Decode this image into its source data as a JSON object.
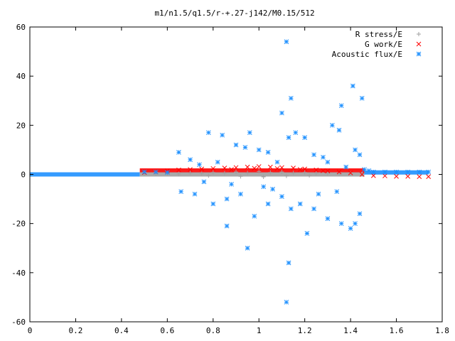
{
  "chart_data": {
    "type": "scatter",
    "title": "m1/n1.5/q1.5/r-+.27-j142/M0.15/512",
    "xlabel": "",
    "ylabel": "",
    "xlim": [
      0,
      1.8
    ],
    "ylim": [
      -60,
      60
    ],
    "grid": false,
    "legend_position": "top-right",
    "x_ticks": [
      "0",
      "0.2",
      "0.4",
      "0.6",
      "0.8",
      "1",
      "1.2",
      "1.4",
      "1.6",
      "1.8"
    ],
    "y_ticks": [
      "60",
      "40",
      "20",
      "0",
      "-20",
      "-40",
      "-60"
    ],
    "series": [
      {
        "name": "R stress/E",
        "marker": "plus",
        "color": "#a0a0a0",
        "points": [
          [
            0.5,
            0.3
          ],
          [
            0.55,
            0.2
          ],
          [
            0.6,
            0.4
          ],
          [
            0.65,
            0.2
          ],
          [
            0.7,
            0.6
          ],
          [
            0.75,
            0.3
          ],
          [
            0.8,
            0.8
          ],
          [
            0.85,
            0.5
          ],
          [
            0.9,
            1.0
          ],
          [
            0.95,
            0.6
          ],
          [
            1.0,
            1.2
          ],
          [
            1.05,
            0.8
          ],
          [
            1.1,
            1.0
          ],
          [
            1.15,
            0.6
          ],
          [
            1.2,
            0.8
          ],
          [
            1.25,
            0.4
          ],
          [
            1.3,
            0.5
          ],
          [
            1.35,
            0.2
          ],
          [
            1.4,
            0.3
          ],
          [
            1.45,
            0.1
          ],
          [
            0.78,
            -0.5
          ],
          [
            0.92,
            -0.8
          ],
          [
            1.02,
            -1.0
          ],
          [
            1.12,
            -0.6
          ],
          [
            1.22,
            -0.4
          ]
        ]
      },
      {
        "name": "G work/E",
        "marker": "cross",
        "color": "#ff0000",
        "points": [
          [
            0.5,
            0.8
          ],
          [
            0.55,
            1.0
          ],
          [
            0.6,
            1.4
          ],
          [
            0.65,
            1.8
          ],
          [
            0.7,
            2.0
          ],
          [
            0.75,
            2.2
          ],
          [
            0.8,
            2.4
          ],
          [
            0.85,
            2.6
          ],
          [
            0.9,
            2.8
          ],
          [
            0.95,
            3.0
          ],
          [
            1.0,
            3.2
          ],
          [
            1.05,
            3.0
          ],
          [
            1.1,
            2.8
          ],
          [
            1.15,
            2.6
          ],
          [
            1.2,
            2.2
          ],
          [
            1.25,
            1.8
          ],
          [
            1.3,
            1.4
          ],
          [
            1.35,
            1.0
          ],
          [
            1.4,
            0.6
          ],
          [
            1.45,
            0.0
          ],
          [
            1.5,
            -0.5
          ],
          [
            1.55,
            -0.6
          ],
          [
            1.6,
            -0.8
          ],
          [
            1.65,
            -0.8
          ],
          [
            1.7,
            -0.9
          ],
          [
            1.74,
            -0.9
          ],
          [
            0.88,
            2.0
          ],
          [
            0.98,
            2.5
          ],
          [
            1.08,
            2.4
          ],
          [
            1.18,
            2.0
          ],
          [
            1.28,
            1.5
          ]
        ]
      },
      {
        "name": "Acoustic flux/E",
        "marker": "star",
        "color": "#1e90ff",
        "points": [
          [
            1.12,
            54.0
          ],
          [
            1.41,
            36.0
          ],
          [
            1.36,
            28.0
          ],
          [
            1.45,
            31.0
          ],
          [
            1.14,
            31.0
          ],
          [
            1.1,
            25.0
          ],
          [
            1.13,
            15.0
          ],
          [
            1.2,
            15.0
          ],
          [
            1.32,
            20.0
          ],
          [
            1.35,
            18.0
          ],
          [
            0.78,
            17.0
          ],
          [
            0.84,
            16.0
          ],
          [
            0.96,
            17.0
          ],
          [
            1.16,
            17.0
          ],
          [
            0.9,
            12.0
          ],
          [
            0.94,
            11.0
          ],
          [
            1.0,
            10.0
          ],
          [
            1.04,
            9.0
          ],
          [
            1.24,
            8.0
          ],
          [
            1.28,
            7.0
          ],
          [
            1.42,
            10.0
          ],
          [
            1.44,
            8.0
          ],
          [
            0.65,
            9.0
          ],
          [
            0.7,
            6.0
          ],
          [
            0.74,
            4.0
          ],
          [
            0.82,
            5.0
          ],
          [
            1.08,
            5.0
          ],
          [
            1.3,
            5.0
          ],
          [
            1.38,
            3.0
          ],
          [
            0.66,
            -7.0
          ],
          [
            0.72,
            -8.0
          ],
          [
            0.8,
            -12.0
          ],
          [
            0.86,
            -10.0
          ],
          [
            0.92,
            -8.0
          ],
          [
            0.98,
            -17.0
          ],
          [
            1.04,
            -12.0
          ],
          [
            1.1,
            -9.0
          ],
          [
            1.14,
            -14.0
          ],
          [
            1.18,
            -12.0
          ],
          [
            1.24,
            -14.0
          ],
          [
            1.3,
            -18.0
          ],
          [
            1.36,
            -20.0
          ],
          [
            1.42,
            -20.0
          ],
          [
            1.44,
            -16.0
          ],
          [
            0.86,
            -21.0
          ],
          [
            1.21,
            -24.0
          ],
          [
            1.4,
            -22.0
          ],
          [
            0.95,
            -30.0
          ],
          [
            1.13,
            -36.0
          ],
          [
            1.12,
            -52.0
          ],
          [
            1.02,
            -5.0
          ],
          [
            1.06,
            -6.0
          ],
          [
            0.88,
            -4.0
          ],
          [
            0.76,
            -3.0
          ],
          [
            1.26,
            -8.0
          ],
          [
            1.34,
            -7.0
          ],
          [
            0.6,
            0.8
          ],
          [
            0.55,
            1.0
          ],
          [
            0.5,
            1.0
          ],
          [
            1.5,
            1.0
          ],
          [
            1.55,
            1.0
          ],
          [
            1.6,
            1.0
          ],
          [
            1.65,
            1.0
          ],
          [
            1.7,
            1.0
          ],
          [
            1.74,
            1.0
          ],
          [
            1.46,
            2.0
          ],
          [
            1.48,
            1.5
          ]
        ]
      }
    ],
    "dense_bands": [
      {
        "series": "Acoustic flux/E",
        "x_from": 0.0,
        "x_to": 0.48,
        "y": 0.0
      },
      {
        "series": "Acoustic flux/E",
        "x_from": 1.46,
        "x_to": 1.74,
        "y": 0.8
      },
      {
        "series": "G work/E",
        "x_from": 0.48,
        "x_to": 1.46,
        "y": 1.6
      },
      {
        "series": "R stress/E",
        "x_from": 0.48,
        "x_to": 1.46,
        "y": 0.0
      }
    ]
  }
}
